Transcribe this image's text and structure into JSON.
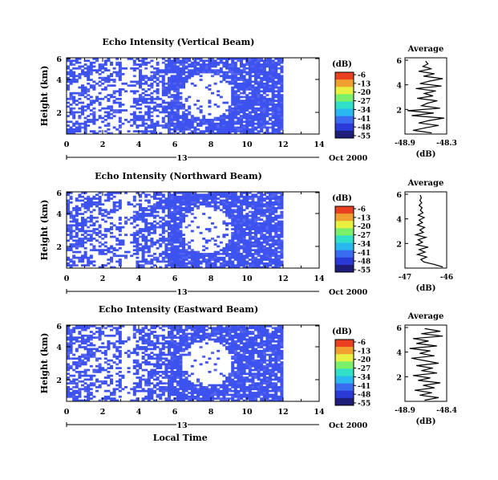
{
  "chart_data": [
    {
      "type": "heatmap",
      "title": "Echo Intensity (Vertical Beam)",
      "xlabel": "",
      "ylabel": "Height (km)",
      "xlim": [
        0,
        14
      ],
      "ylim": [
        0,
        6
      ],
      "x_ticks": [
        "0",
        "2",
        "4",
        "6",
        "8",
        "10",
        "12",
        "14"
      ],
      "y_ticks": [
        "2",
        "4",
        "6"
      ],
      "date_day": "13",
      "date_label": "Oct 2000",
      "colorbar": {
        "unit": "(dB)",
        "ticks": [
          "-6",
          "-13",
          "-20",
          "-27",
          "-34",
          "-41",
          "-48",
          "-55"
        ]
      },
      "data_extent_hours": [
        0,
        12
      ],
      "average_profile": {
        "title": "Average",
        "xlabel": "(dB)",
        "x_ticks": [
          "-48.9",
          "-48.3"
        ],
        "xlim": [
          -48.9,
          -48.3
        ],
        "y_ticks": [
          "2",
          "4",
          "6"
        ],
        "ylim": [
          0,
          6
        ],
        "series": [
          {
            "y": 0.1,
            "x": -48.52
          },
          {
            "y": 0.3,
            "x": -48.78
          },
          {
            "y": 0.5,
            "x": -48.61
          },
          {
            "y": 0.7,
            "x": -48.42
          },
          {
            "y": 0.9,
            "x": -48.7
          },
          {
            "y": 1.1,
            "x": -48.55
          },
          {
            "y": 1.3,
            "x": -48.34
          },
          {
            "y": 1.5,
            "x": -48.8
          },
          {
            "y": 1.7,
            "x": -48.49
          },
          {
            "y": 1.9,
            "x": -48.86
          },
          {
            "y": 2.1,
            "x": -48.4
          },
          {
            "y": 2.3,
            "x": -48.66
          },
          {
            "y": 2.5,
            "x": -48.58
          },
          {
            "y": 2.7,
            "x": -48.44
          },
          {
            "y": 2.9,
            "x": -48.72
          },
          {
            "y": 3.1,
            "x": -48.5
          },
          {
            "y": 3.3,
            "x": -48.62
          },
          {
            "y": 3.5,
            "x": -48.46
          },
          {
            "y": 3.7,
            "x": -48.74
          },
          {
            "y": 3.9,
            "x": -48.38
          },
          {
            "y": 4.1,
            "x": -48.68
          },
          {
            "y": 4.3,
            "x": -48.55
          },
          {
            "y": 4.5,
            "x": -48.36
          },
          {
            "y": 4.7,
            "x": -48.63
          },
          {
            "y": 4.9,
            "x": -48.48
          },
          {
            "y": 5.1,
            "x": -48.7
          },
          {
            "y": 5.3,
            "x": -48.52
          },
          {
            "y": 5.5,
            "x": -48.64
          },
          {
            "y": 5.7,
            "x": -48.57
          },
          {
            "y": 5.9,
            "x": -48.6
          }
        ]
      }
    },
    {
      "type": "heatmap",
      "title": "Echo Intensity (Northward Beam)",
      "xlabel": "",
      "ylabel": "Height (km)",
      "xlim": [
        0,
        14
      ],
      "ylim": [
        0,
        6
      ],
      "x_ticks": [
        "0",
        "2",
        "4",
        "6",
        "8",
        "10",
        "12",
        "14"
      ],
      "y_ticks": [
        "2",
        "4",
        "6"
      ],
      "date_day": "13",
      "date_label": "Oct 2000",
      "colorbar": {
        "unit": "(dB)",
        "ticks": [
          "-6",
          "-13",
          "-20",
          "-27",
          "-34",
          "-41",
          "-48",
          "-55"
        ]
      },
      "data_extent_hours": [
        0,
        12
      ],
      "average_profile": {
        "title": "Average",
        "xlabel": "(dB)",
        "x_ticks": [
          "-47",
          "-46"
        ],
        "xlim": [
          -47,
          -46
        ],
        "y_ticks": [
          "2",
          "4",
          "6"
        ],
        "ylim": [
          0,
          6
        ],
        "series": [
          {
            "y": 0.1,
            "x": -46.1
          },
          {
            "y": 0.3,
            "x": -46.3
          },
          {
            "y": 0.5,
            "x": -46.55
          },
          {
            "y": 0.7,
            "x": -46.62
          },
          {
            "y": 0.9,
            "x": -46.48
          },
          {
            "y": 1.1,
            "x": -46.7
          },
          {
            "y": 1.3,
            "x": -46.52
          },
          {
            "y": 1.5,
            "x": -46.66
          },
          {
            "y": 1.7,
            "x": -46.45
          },
          {
            "y": 1.9,
            "x": -46.72
          },
          {
            "y": 2.1,
            "x": -46.58
          },
          {
            "y": 2.3,
            "x": -46.68
          },
          {
            "y": 2.5,
            "x": -46.5
          },
          {
            "y": 2.7,
            "x": -46.74
          },
          {
            "y": 2.9,
            "x": -46.56
          },
          {
            "y": 3.1,
            "x": -46.64
          },
          {
            "y": 3.3,
            "x": -46.53
          },
          {
            "y": 3.5,
            "x": -46.7
          },
          {
            "y": 3.7,
            "x": -46.58
          },
          {
            "y": 3.9,
            "x": -46.66
          },
          {
            "y": 4.1,
            "x": -46.54
          },
          {
            "y": 4.3,
            "x": -46.68
          },
          {
            "y": 4.5,
            "x": -46.57
          },
          {
            "y": 4.7,
            "x": -46.63
          },
          {
            "y": 4.9,
            "x": -46.59
          },
          {
            "y": 5.1,
            "x": -46.66
          },
          {
            "y": 5.3,
            "x": -46.6
          },
          {
            "y": 5.5,
            "x": -46.64
          },
          {
            "y": 5.7,
            "x": -46.61
          },
          {
            "y": 5.9,
            "x": -46.63
          }
        ]
      }
    },
    {
      "type": "heatmap",
      "title": "Echo Intensity (Eastward Beam)",
      "xlabel": "Local Time",
      "ylabel": "Height (km)",
      "xlim": [
        0,
        14
      ],
      "ylim": [
        0,
        6
      ],
      "x_ticks": [
        "0",
        "2",
        "4",
        "6",
        "8",
        "10",
        "12",
        "14"
      ],
      "y_ticks": [
        "2",
        "4",
        "6"
      ],
      "date_day": "13",
      "date_label": "Oct 2000",
      "colorbar": {
        "unit": "(dB)",
        "ticks": [
          "-6",
          "-13",
          "-20",
          "-27",
          "-34",
          "-41",
          "-48",
          "-55"
        ]
      },
      "data_extent_hours": [
        0,
        12
      ],
      "average_profile": {
        "title": "Average",
        "xlabel": "(dB)",
        "x_ticks": [
          "-48.9",
          "-48.4"
        ],
        "xlim": [
          -48.9,
          -48.4
        ],
        "y_ticks": [
          "2",
          "4",
          "6"
        ],
        "ylim": [
          0,
          6
        ],
        "series": [
          {
            "y": 0.1,
            "x": -48.66
          },
          {
            "y": 0.3,
            "x": -48.5
          },
          {
            "y": 0.5,
            "x": -48.72
          },
          {
            "y": 0.7,
            "x": -48.58
          },
          {
            "y": 0.9,
            "x": -48.78
          },
          {
            "y": 1.1,
            "x": -48.55
          },
          {
            "y": 1.3,
            "x": -48.68
          },
          {
            "y": 1.5,
            "x": -48.48
          },
          {
            "y": 1.7,
            "x": -48.74
          },
          {
            "y": 1.9,
            "x": -48.6
          },
          {
            "y": 2.1,
            "x": -48.8
          },
          {
            "y": 2.3,
            "x": -48.52
          },
          {
            "y": 2.5,
            "x": -48.7
          },
          {
            "y": 2.7,
            "x": -48.57
          },
          {
            "y": 2.9,
            "x": -48.76
          },
          {
            "y": 3.1,
            "x": -48.5
          },
          {
            "y": 3.3,
            "x": -48.66
          },
          {
            "y": 3.5,
            "x": -48.82
          },
          {
            "y": 3.7,
            "x": -48.55
          },
          {
            "y": 3.9,
            "x": -48.72
          },
          {
            "y": 4.1,
            "x": -48.6
          },
          {
            "y": 4.3,
            "x": -48.84
          },
          {
            "y": 4.5,
            "x": -48.52
          },
          {
            "y": 4.7,
            "x": -48.76
          },
          {
            "y": 4.9,
            "x": -48.62
          },
          {
            "y": 5.1,
            "x": -48.8
          },
          {
            "y": 5.3,
            "x": -48.45
          },
          {
            "y": 5.5,
            "x": -48.7
          },
          {
            "y": 5.7,
            "x": -48.48
          },
          {
            "y": 5.9,
            "x": -48.66
          }
        ]
      }
    }
  ],
  "colors": {
    "echo_cell": "#3d52ee",
    "echo_cell_alt": "#5464f0",
    "background": "#ffffff",
    "axis": "#000000",
    "colorbar_stops": [
      "#1e1e7a",
      "#2a3ad6",
      "#3a6cf0",
      "#2ab8f0",
      "#30e0c8",
      "#7af06a",
      "#e8f040",
      "#f0a030",
      "#e84020"
    ]
  }
}
